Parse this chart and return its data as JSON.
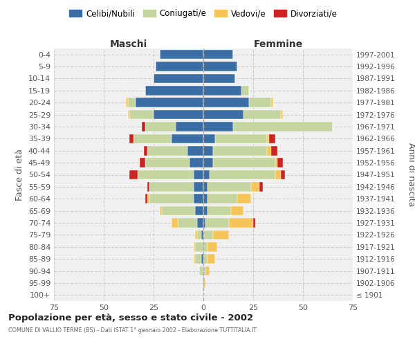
{
  "age_groups": [
    "100+",
    "95-99",
    "90-94",
    "85-89",
    "80-84",
    "75-79",
    "70-74",
    "65-69",
    "60-64",
    "55-59",
    "50-54",
    "45-49",
    "40-44",
    "35-39",
    "30-34",
    "25-29",
    "20-24",
    "15-19",
    "10-14",
    "5-9",
    "0-4"
  ],
  "birth_years": [
    "≤ 1901",
    "1902-1906",
    "1907-1911",
    "1912-1916",
    "1917-1921",
    "1922-1926",
    "1927-1931",
    "1932-1936",
    "1937-1941",
    "1942-1946",
    "1947-1951",
    "1952-1956",
    "1957-1961",
    "1962-1966",
    "1967-1971",
    "1972-1976",
    "1977-1981",
    "1982-1986",
    "1987-1991",
    "1992-1996",
    "1997-2001"
  ],
  "male_celibi": [
    0,
    0,
    0,
    1,
    0,
    1,
    3,
    4,
    5,
    5,
    5,
    7,
    8,
    16,
    14,
    25,
    34,
    29,
    25,
    24,
    22
  ],
  "male_coniugati": [
    0,
    0,
    2,
    3,
    4,
    2,
    10,
    17,
    22,
    22,
    28,
    22,
    20,
    19,
    15,
    12,
    4,
    0,
    0,
    0,
    0
  ],
  "male_vedovi": [
    0,
    0,
    0,
    1,
    1,
    1,
    3,
    1,
    1,
    0,
    0,
    0,
    0,
    0,
    0,
    1,
    1,
    0,
    0,
    0,
    0
  ],
  "male_divorziati": [
    0,
    0,
    0,
    0,
    0,
    0,
    0,
    0,
    1,
    1,
    4,
    3,
    2,
    2,
    2,
    0,
    0,
    0,
    0,
    0,
    0
  ],
  "female_nubili": [
    0,
    0,
    0,
    0,
    0,
    0,
    1,
    2,
    2,
    2,
    3,
    5,
    5,
    6,
    15,
    20,
    23,
    19,
    16,
    17,
    15
  ],
  "female_coniugate": [
    0,
    0,
    1,
    2,
    2,
    5,
    12,
    12,
    15,
    22,
    33,
    31,
    27,
    26,
    50,
    19,
    11,
    4,
    0,
    0,
    0
  ],
  "female_vedove": [
    0,
    1,
    2,
    4,
    5,
    8,
    12,
    6,
    7,
    4,
    3,
    1,
    2,
    1,
    0,
    1,
    1,
    0,
    0,
    0,
    0
  ],
  "female_divorziate": [
    0,
    0,
    0,
    0,
    0,
    0,
    1,
    0,
    0,
    2,
    2,
    3,
    3,
    3,
    0,
    0,
    0,
    0,
    0,
    0,
    0
  ],
  "color_celibi": "#3A6EA5",
  "color_coniugati": "#C5D5A0",
  "color_vedovi": "#F5C55A",
  "color_divorziati": "#CC2222",
  "xlim": 75,
  "title": "Popolazione per età, sesso e stato civile - 2002",
  "subtitle": "COMUNE DI VALLIO TERME (BS) - Dati ISTAT 1° gennaio 2002 - Elaborazione TUTTITALIA.IT",
  "label_maschi": "Maschi",
  "label_femmine": "Femmine",
  "ylabel_left": "Fasce di età",
  "ylabel_right": "Anni di nascita",
  "legend_labels": [
    "Celibi/Nubili",
    "Coniugati/e",
    "Vedovi/e",
    "Divorziati/e"
  ],
  "bg_color": "#ffffff",
  "plot_bg": "#f0f0f0",
  "grid_color": "#cccccc"
}
